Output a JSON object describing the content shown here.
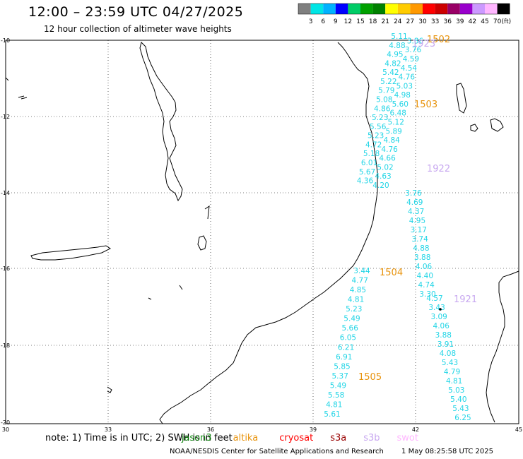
{
  "header": {
    "title": "12:00 – 23:59 UTC 04/27/2025",
    "subtitle": "12 hour collection of altimeter wave heights"
  },
  "colorbar": {
    "colors": [
      "#7f7f7f",
      "#00e5e5",
      "#00b2ff",
      "#0000ff",
      "#00cc66",
      "#00a000",
      "#008000",
      "#ffff00",
      "#ffcc00",
      "#ff9900",
      "#ff0000",
      "#cc0000",
      "#990066",
      "#9900cc",
      "#cc99ff",
      "#ffb6ff",
      "#000000"
    ],
    "labels": [
      "3",
      "6",
      "9",
      "12",
      "15",
      "18",
      "21",
      "24",
      "27",
      "30",
      "33",
      "36",
      "39",
      "42",
      "45",
      "70"
    ],
    "unit": "(ft)"
  },
  "axes": {
    "x_ticks": [
      "30",
      "33",
      "36",
      "39",
      "42",
      "45"
    ],
    "y_ticks": [
      "-10",
      "-12",
      "-14",
      "-16",
      "-18",
      "-20"
    ]
  },
  "tracks": [
    {
      "id": "1502",
      "color": "#e8930c",
      "label_color": "#e8930c",
      "points": [
        "5.11",
        "3.86",
        "4.88",
        "3.76",
        "4.95",
        "4.59",
        "4.82",
        "4.54",
        "5.42",
        "4.76",
        "5.22",
        "5.03",
        "5.79",
        "4.98",
        "5.08",
        "5.60",
        "4.86",
        "6.48",
        "5.23",
        "5.12",
        "5.56",
        "5.89",
        "5.23",
        "4.84",
        "4.72",
        "4.76",
        "5.18",
        "4.66",
        "6.01",
        "5.02",
        "5.67",
        "4.63",
        "4.36",
        "4.20"
      ]
    },
    {
      "id": "1503",
      "color": "#e8930c",
      "label_color": "#e8930c",
      "points": []
    },
    {
      "id": "1922",
      "color": "#c8a8f0",
      "label_color": "#c8a8f0",
      "points": [
        "3.76",
        "4.69",
        "4.37",
        "4.95",
        "3.17",
        "3.74",
        "4.88",
        "3.88",
        "4.06",
        "4.40",
        "4.74",
        "3.30"
      ]
    },
    {
      "id": "1504",
      "color": "#e8930c",
      "label_color": "#e8930c",
      "points": [
        "3.44",
        "4.77",
        "4.85",
        "4.81",
        "5.23",
        "5.49",
        "5.66",
        "6.05",
        "6.21",
        "6.91",
        "5.85",
        "5.37",
        "5.49",
        "5.58",
        "4.81",
        "5.61"
      ]
    },
    {
      "id": "1505",
      "color": "#e8930c",
      "label_color": "#e8930c",
      "points": []
    },
    {
      "id": "1921",
      "color": "#c8a8f0",
      "label_color": "#c8a8f0",
      "points": [
        "4.57",
        "3.43",
        "3.09",
        "4.06",
        "3.88",
        "3.91",
        "4.08",
        "5.43",
        "4.79",
        "4.81",
        "5.03",
        "5.40",
        "5.43",
        "6.25"
      ]
    },
    {
      "id": "1923",
      "color": "#c8a8f0",
      "label_color": "#c8a8f0",
      "points": []
    }
  ],
  "note": {
    "prefix": "note: 1) Time is in UTC; 2) SWH is in feet",
    "satellites": [
      {
        "name": "jason3",
        "color": "#008000"
      },
      {
        "name": "altika",
        "color": "#e8930c"
      },
      {
        "name": "cryosat",
        "color": "#ff0000"
      },
      {
        "name": "s3a",
        "color": "#990000"
      },
      {
        "name": "s3b",
        "color": "#c8a8f0"
      },
      {
        "name": "swot",
        "color": "#ffb6ff"
      }
    ]
  },
  "footer": {
    "credit": "NOAA/NESDIS Center for Satellite Applications and Research",
    "timestamp": "1 May 08:25:58 UTC 2025"
  }
}
